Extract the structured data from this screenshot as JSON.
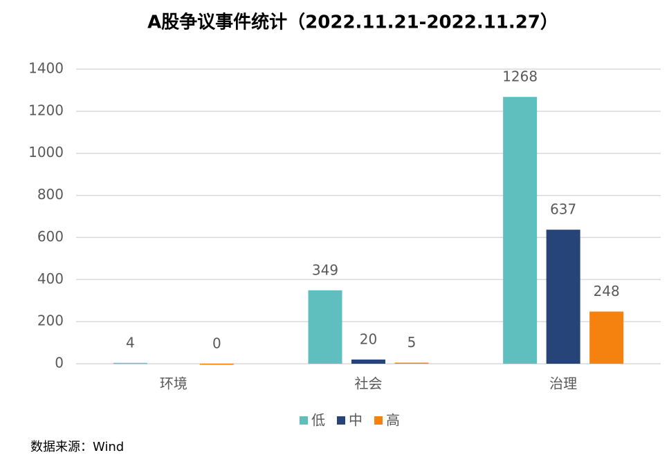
{
  "chart_data": {
    "type": "bar",
    "title": "A股争议事件统计（2022.11.21-2022.11.27）",
    "source": "数据来源：Wind",
    "categories": [
      "环境",
      "社会",
      "治理"
    ],
    "series": [
      {
        "name": "低",
        "color": "#5fbfbf",
        "values": [
          4,
          349,
          1268
        ]
      },
      {
        "name": "中",
        "color": "#264478",
        "values": [
          null,
          20,
          637
        ]
      },
      {
        "name": "高",
        "color": "#f5820f",
        "values": [
          0,
          5,
          248
        ]
      }
    ],
    "ylim": [
      0,
      1400
    ],
    "yticks": [
      0,
      200,
      400,
      600,
      800,
      1000,
      1200,
      1400
    ],
    "grid": true,
    "legend": "bottom"
  }
}
